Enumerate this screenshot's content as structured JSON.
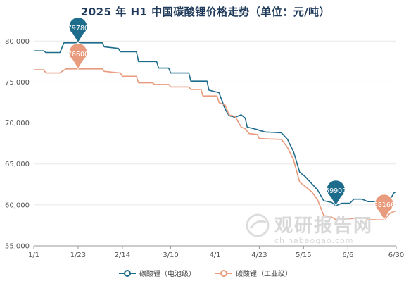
{
  "colors": {
    "battery": "#1e6c8c",
    "industrial": "#e89b7d",
    "title": "#1f3a5a",
    "grid": "#e8e8e8"
  },
  "watermark": {
    "cn": "观研报告网",
    "en": "chinabaogao.com"
  },
  "chart_data": {
    "type": "line",
    "title": "2025 年 H1 中国碳酸锂价格走势（单位：元/吨）",
    "xlabel": "",
    "ylabel": "",
    "ylim": [
      55000,
      80000
    ],
    "yticks": [
      "55,000",
      "60,000",
      "65,000",
      "70,000",
      "75,000",
      "80,000"
    ],
    "ytick_values": [
      55000,
      60000,
      65000,
      70000,
      75000,
      80000
    ],
    "xticks": [
      "1/1",
      "1/23",
      "2/14",
      "3/10",
      "4/1",
      "4/23",
      "5/15",
      "6/6",
      "6/30"
    ],
    "xtick_days": [
      1,
      23,
      45,
      69,
      91,
      113,
      135,
      157,
      181
    ],
    "x_range_days": [
      1,
      181
    ],
    "grid": true,
    "legend_position": "bottom",
    "series": [
      {
        "name": "碳酸锂（电池级）",
        "points": [
          [
            1,
            78800
          ],
          [
            6,
            78800
          ],
          [
            7,
            78600
          ],
          [
            14,
            78600
          ],
          [
            15,
            79200
          ],
          [
            16,
            79780
          ],
          [
            35,
            79780
          ],
          [
            36,
            79300
          ],
          [
            43,
            79100
          ],
          [
            44,
            78700
          ],
          [
            52,
            78700
          ],
          [
            53,
            77500
          ],
          [
            62,
            77500
          ],
          [
            63,
            76700
          ],
          [
            68,
            76700
          ],
          [
            69,
            76100
          ],
          [
            78,
            76100
          ],
          [
            79,
            75100
          ],
          [
            87,
            75100
          ],
          [
            88,
            74000
          ],
          [
            93,
            73700
          ],
          [
            96,
            71700
          ],
          [
            98,
            70900
          ],
          [
            101,
            70700
          ],
          [
            104,
            71000
          ],
          [
            106,
            70600
          ],
          [
            107,
            69500
          ],
          [
            112,
            69200
          ],
          [
            113,
            69100
          ],
          [
            116,
            68900
          ],
          [
            124,
            68800
          ],
          [
            127,
            68000
          ],
          [
            130,
            66500
          ],
          [
            133,
            64000
          ],
          [
            136,
            63400
          ],
          [
            139,
            62600
          ],
          [
            142,
            61800
          ],
          [
            145,
            60500
          ],
          [
            149,
            60300
          ],
          [
            151,
            59900
          ],
          [
            154,
            60200
          ],
          [
            158,
            60200
          ],
          [
            160,
            60700
          ],
          [
            164,
            60700
          ],
          [
            167,
            60400
          ],
          [
            172,
            60400
          ],
          [
            175,
            60000
          ],
          [
            177,
            60300
          ],
          [
            180,
            61500
          ],
          [
            181,
            61600
          ]
        ],
        "peak_label": "79780",
        "end_label": "59900"
      },
      {
        "name": "碳酸锂（工业级）",
        "points": [
          [
            1,
            76500
          ],
          [
            6,
            76500
          ],
          [
            7,
            76100
          ],
          [
            14,
            76100
          ],
          [
            15,
            76300
          ],
          [
            17,
            76600
          ],
          [
            35,
            76600
          ],
          [
            36,
            76300
          ],
          [
            44,
            76100
          ],
          [
            45,
            75700
          ],
          [
            52,
            75700
          ],
          [
            53,
            74900
          ],
          [
            60,
            74900
          ],
          [
            61,
            74700
          ],
          [
            68,
            74700
          ],
          [
            69,
            74400
          ],
          [
            78,
            74400
          ],
          [
            79,
            74100
          ],
          [
            84,
            74100
          ],
          [
            85,
            73300
          ],
          [
            92,
            73300
          ],
          [
            93,
            72500
          ],
          [
            96,
            72200
          ],
          [
            98,
            71000
          ],
          [
            101,
            70800
          ],
          [
            104,
            69500
          ],
          [
            106,
            69300
          ],
          [
            108,
            68700
          ],
          [
            112,
            68600
          ],
          [
            113,
            68100
          ],
          [
            124,
            68000
          ],
          [
            127,
            67000
          ],
          [
            130,
            65500
          ],
          [
            133,
            62800
          ],
          [
            136,
            62200
          ],
          [
            139,
            61600
          ],
          [
            142,
            60600
          ],
          [
            145,
            58700
          ],
          [
            149,
            58500
          ],
          [
            151,
            58200
          ],
          [
            154,
            58300
          ],
          [
            158,
            58300
          ],
          [
            161,
            58400
          ],
          [
            165,
            58400
          ],
          [
            168,
            58200
          ],
          [
            172,
            58166
          ],
          [
            175,
            58166
          ],
          [
            178,
            59000
          ],
          [
            181,
            59300
          ]
        ],
        "peak_label": "76600",
        "end_label": "58166"
      }
    ]
  }
}
